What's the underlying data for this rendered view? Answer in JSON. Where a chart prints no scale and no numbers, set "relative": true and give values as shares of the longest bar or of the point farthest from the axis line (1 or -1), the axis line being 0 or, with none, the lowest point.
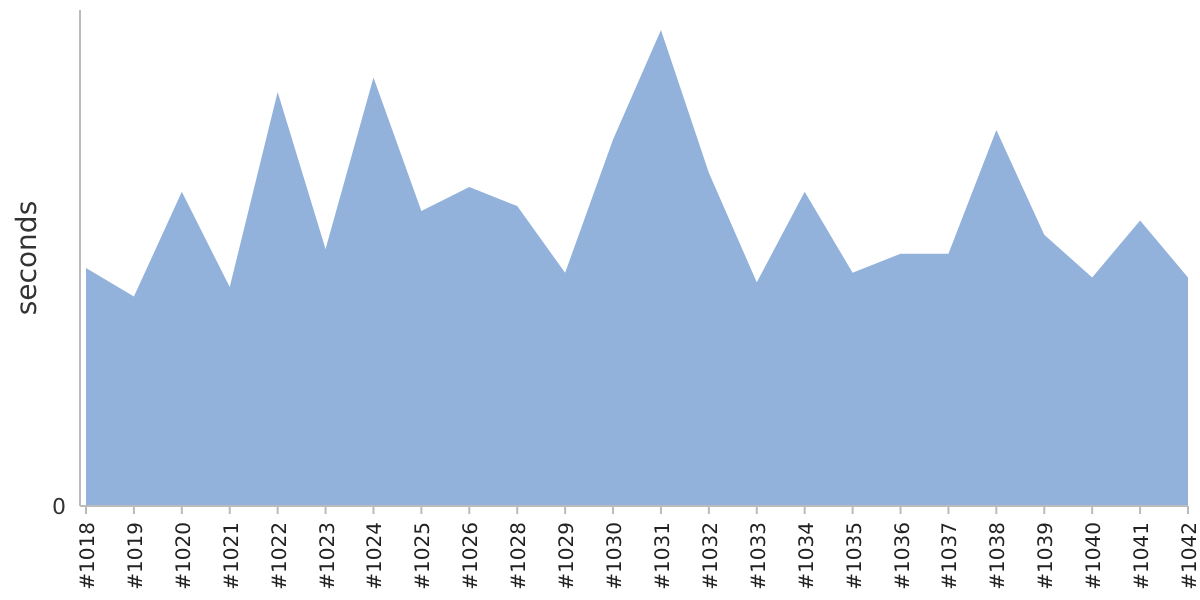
{
  "chart_data": {
    "type": "area",
    "ylabel": "seconds",
    "relative": true,
    "annotations": [
      "0"
    ],
    "categories": [
      "#1018",
      "#1019",
      "#1020",
      "#1021",
      "#1022",
      "#1023",
      "#1024",
      "#1025",
      "#1026",
      "#1028",
      "#1029",
      "#1030",
      "#1031",
      "#1032",
      "#1033",
      "#1034",
      "#1035",
      "#1036",
      "#1037",
      "#1038",
      "#1039",
      "#1040",
      "#1041",
      "#1042"
    ],
    "series": [
      {
        "color": "#92b2db",
        "values": [
          0.5,
          0.44,
          0.66,
          0.46,
          0.87,
          0.54,
          0.9,
          0.62,
          0.67,
          0.63,
          0.49,
          0.77,
          1,
          0.7,
          0.47,
          0.66,
          0.49,
          0.53,
          0.53,
          0.79,
          0.57,
          0.48,
          0.6,
          0.48
        ]
      }
    ]
  }
}
